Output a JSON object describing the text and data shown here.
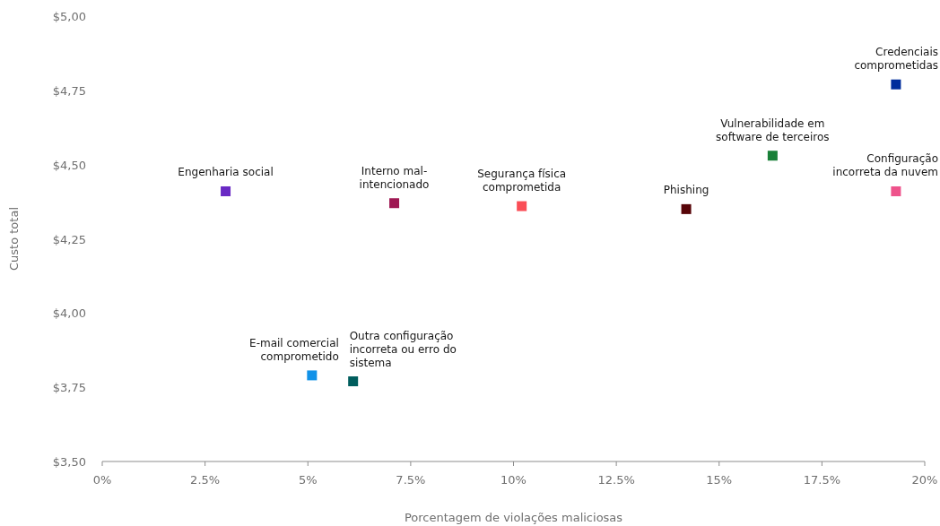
{
  "chart_data": {
    "type": "scatter",
    "xlabel": "Porcentagem de violações maliciosas",
    "ylabel": "Custo total",
    "marker": "square",
    "grid": false,
    "xlim": [
      0,
      20
    ],
    "xticks": [
      {
        "value": 0,
        "label": "0%"
      },
      {
        "value": 2.5,
        "label": "2.5%"
      },
      {
        "value": 5,
        "label": "5%"
      },
      {
        "value": 7.5,
        "label": "7.5%"
      },
      {
        "value": 10,
        "label": "10%"
      },
      {
        "value": 12.5,
        "label": "12.5%"
      },
      {
        "value": 15,
        "label": "15%"
      },
      {
        "value": 17.5,
        "label": "17.5%"
      },
      {
        "value": 20,
        "label": "20%"
      }
    ],
    "ylim": [
      3.5,
      5
    ],
    "yticks": [
      {
        "value": 3.5,
        "label": "$3,50"
      },
      {
        "value": 3.75,
        "label": "$3,75"
      },
      {
        "value": 4,
        "label": "$4,00"
      },
      {
        "value": 4.25,
        "label": "$4,25"
      },
      {
        "value": 4.5,
        "label": "$4,50"
      },
      {
        "value": 4.75,
        "label": "$4,75"
      },
      {
        "value": 5,
        "label": "$5,00"
      }
    ],
    "series": [
      {
        "name": "Engenharia social",
        "color": "#6929c4",
        "x": [
          3
        ],
        "values": [
          4.41
        ]
      },
      {
        "name": "E-mail comercial comprometido",
        "color": "#1192e8",
        "x": [
          5.1
        ],
        "values": [
          3.79
        ]
      },
      {
        "name": "Outra configuração incorreta ou erro do sistema",
        "color": "#005d5d",
        "x": [
          6.1
        ],
        "values": [
          3.77
        ]
      },
      {
        "name": "Interno mal-intencionado",
        "color": "#9f1853",
        "x": [
          7.1
        ],
        "values": [
          4.37
        ]
      },
      {
        "name": "Segurança física comprometida",
        "color": "#fa4d56",
        "x": [
          10.2
        ],
        "values": [
          4.36
        ]
      },
      {
        "name": "Phishing",
        "color": "#570408",
        "x": [
          14.2
        ],
        "values": [
          4.35
        ]
      },
      {
        "name": "Vulnerabilidade em software de terceiros",
        "color": "#198038",
        "x": [
          16.3
        ],
        "values": [
          4.53
        ]
      },
      {
        "name": "Credenciais comprometidas",
        "color": "#002d9c",
        "x": [
          19.3
        ],
        "values": [
          4.77
        ]
      },
      {
        "name": "Configuração incorreta da nuvem",
        "color": "#ee538b",
        "x": [
          19.3
        ],
        "values": [
          4.41
        ]
      }
    ]
  }
}
